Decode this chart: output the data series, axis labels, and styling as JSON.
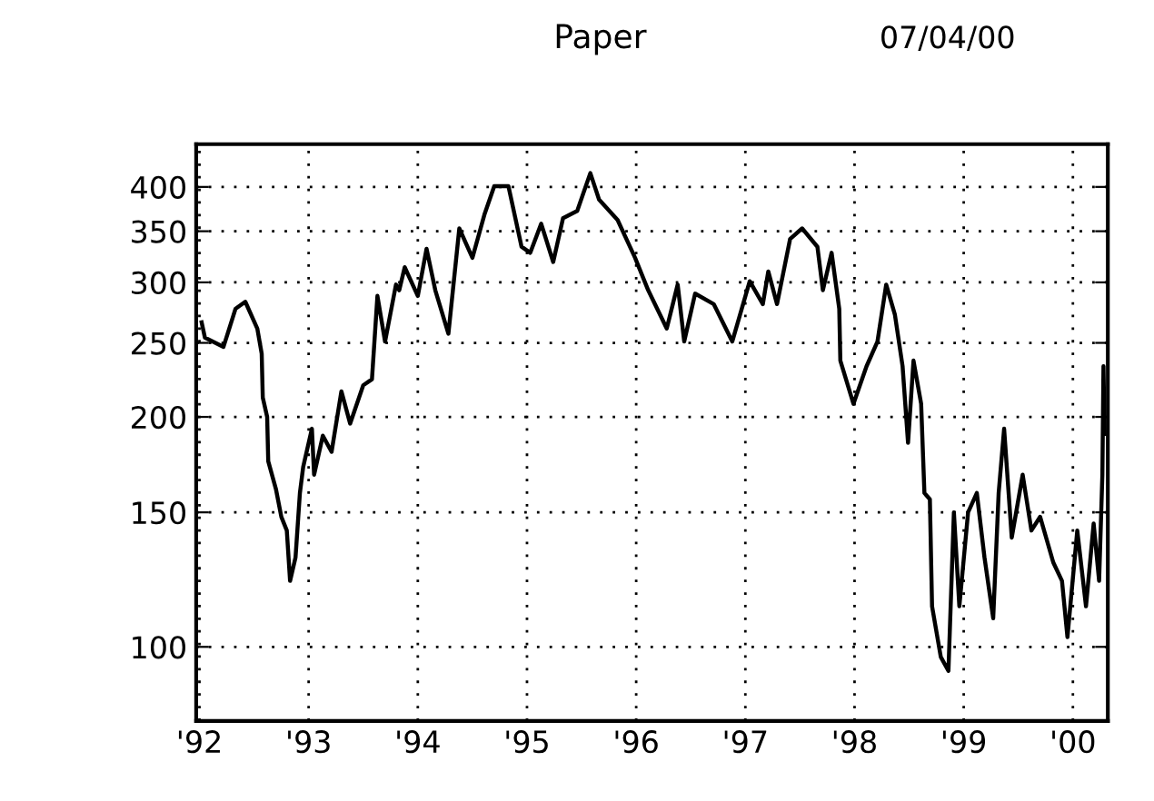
{
  "chart_data": {
    "type": "line",
    "title": "Paper",
    "annotations": [
      "07/04/00"
    ],
    "log": "y",
    "grid": true,
    "line_style": "solid",
    "marker": "none",
    "xlim": [
      1991.97,
      2000.32
    ],
    "ylim": [
      80,
      455
    ],
    "xticks": [
      {
        "value": 1992,
        "label": "'92"
      },
      {
        "value": 1993,
        "label": "'93"
      },
      {
        "value": 1994,
        "label": "'94"
      },
      {
        "value": 1995,
        "label": "'95"
      },
      {
        "value": 1996,
        "label": "'96"
      },
      {
        "value": 1997,
        "label": "'97"
      },
      {
        "value": 1998,
        "label": "'98"
      },
      {
        "value": 1999,
        "label": "'99"
      },
      {
        "value": 2000,
        "label": "'00"
      }
    ],
    "yticks": [
      100,
      150,
      200,
      250,
      300,
      350,
      400
    ],
    "series": [
      {
        "color": "#000000",
        "x": [
          1992.02,
          1992.05,
          1992.22,
          1992.33,
          1992.42,
          1992.53,
          1992.57,
          1992.58,
          1992.62,
          1992.63,
          1992.7,
          1992.75,
          1992.8,
          1992.83,
          1992.88,
          1992.92,
          1992.95,
          1993.03,
          1993.05,
          1993.13,
          1993.21,
          1993.3,
          1993.38,
          1993.5,
          1993.58,
          1993.63,
          1993.7,
          1993.8,
          1993.83,
          1993.88,
          1994.0,
          1994.08,
          1994.16,
          1994.28,
          1994.38,
          1994.5,
          1994.61,
          1994.7,
          1994.83,
          1994.95,
          1995.03,
          1995.13,
          1995.24,
          1995.33,
          1995.46,
          1995.58,
          1995.66,
          1995.83,
          1995.99,
          1996.11,
          1996.28,
          1996.38,
          1996.44,
          1996.54,
          1996.71,
          1996.88,
          1997.04,
          1997.16,
          1997.21,
          1997.29,
          1997.41,
          1997.52,
          1997.66,
          1997.71,
          1997.79,
          1997.82,
          1997.86,
          1997.87,
          1997.99,
          1998.11,
          1998.21,
          1998.29,
          1998.37,
          1998.44,
          1998.49,
          1998.54,
          1998.61,
          1998.64,
          1998.69,
          1998.71,
          1998.79,
          1998.86,
          1998.91,
          1998.96,
          1999.04,
          1999.12,
          1999.19,
          1999.27,
          1999.32,
          1999.37,
          1999.44,
          1999.54,
          1999.62,
          1999.7,
          1999.82,
          1999.9,
          1999.95,
          2000.04,
          2000.12,
          2000.19,
          2000.24,
          2000.27,
          2000.28,
          2000.29
        ],
        "values": [
          266,
          254,
          247,
          277,
          283,
          261,
          242,
          212,
          200,
          175,
          161,
          148,
          142,
          122,
          131,
          159,
          172,
          193,
          168,
          189,
          180,
          216,
          196,
          220,
          224,
          288,
          251,
          298,
          293,
          314,
          288,
          332,
          293,
          257,
          353,
          323,
          368,
          401,
          401,
          334,
          328,
          358,
          319,
          364,
          372,
          417,
          385,
          362,
          323,
          293,
          261,
          298,
          251,
          290,
          281,
          251,
          301,
          281,
          310,
          281,
          342,
          353,
          334,
          293,
          328,
          305,
          277,
          237,
          208,
          233,
          251,
          298,
          272,
          233,
          185,
          237,
          208,
          159,
          156,
          113,
          97,
          93,
          150,
          113,
          150,
          159,
          131,
          109,
          159,
          193,
          139,
          168,
          142,
          148,
          129,
          122,
          103,
          142,
          113,
          145,
          122,
          168,
          233,
          190
        ]
      }
    ]
  }
}
